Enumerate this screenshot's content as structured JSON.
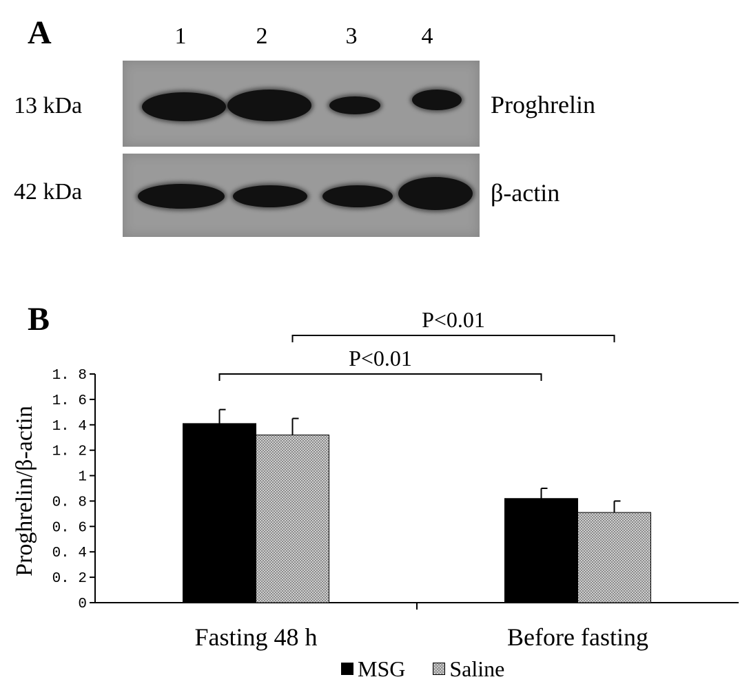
{
  "panel_a": {
    "letter": "A",
    "lanes": [
      "1",
      "2",
      "3",
      "4"
    ],
    "rows": [
      {
        "mw": "13 kDa",
        "protein": "Proghrelin"
      },
      {
        "mw": "42 kDa",
        "protein": "β-actin"
      }
    ]
  },
  "panel_b": {
    "letter": "B"
  },
  "chart_data": {
    "type": "bar",
    "categories": [
      "Fasting 48 h",
      "Before fasting"
    ],
    "series": [
      {
        "name": "MSG",
        "values": [
          1.41,
          0.82
        ],
        "errors": [
          0.11,
          0.08
        ],
        "color": "#000000"
      },
      {
        "name": "Saline",
        "values": [
          1.32,
          0.71
        ],
        "errors": [
          0.13,
          0.09
        ],
        "color": "#c8c8c8"
      }
    ],
    "ylabel": "Proghrelin/β-actin",
    "ylim": [
      0,
      1.8
    ],
    "yticks": [
      "0",
      "0. 2",
      "0. 4",
      "0. 6",
      "0. 8",
      "1",
      "1. 2",
      "1. 4",
      "1. 6",
      "1. 8"
    ],
    "annotations": [
      {
        "text": "P<0.01",
        "from": "Fasting 48 h / MSG",
        "to": "Before fasting / MSG"
      },
      {
        "text": "P<0.01",
        "from": "Fasting 48 h / Saline",
        "to": "Before fasting / Saline"
      }
    ],
    "legend": "bottom"
  }
}
